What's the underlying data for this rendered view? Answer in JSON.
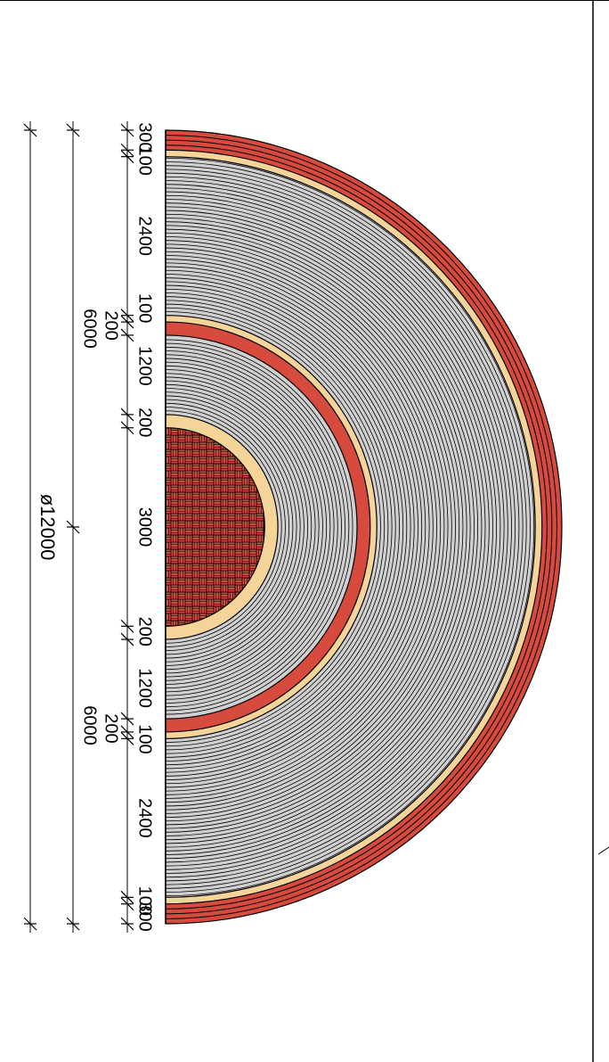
{
  "colors": {
    "brick": "#d64b3e",
    "cream": "#f5d49a",
    "gray": "#d0d0d0",
    "line": "#000000",
    "background": "#ffffff"
  },
  "layers_inner_to_outer": [
    {
      "name": "core",
      "thickness": 3000,
      "fill": "brick-pattern"
    },
    {
      "name": "cream-band-1",
      "thickness": 200,
      "fill": "cream"
    },
    {
      "name": "gray-rings-inner",
      "thickness": 1200,
      "fill": "gray-rings"
    },
    {
      "name": "brick-band-1",
      "thickness": 200,
      "fill": "brick"
    },
    {
      "name": "cream-band-2",
      "thickness": 100,
      "fill": "cream"
    },
    {
      "name": "gray-rings-outer",
      "thickness": 2400,
      "fill": "gray-rings"
    },
    {
      "name": "cream-band-3",
      "thickness": 100,
      "fill": "cream"
    },
    {
      "name": "brick-band-outer",
      "thickness": 300,
      "fill": "brick-striped"
    }
  ],
  "dimensions": {
    "top_row": [
      "300",
      "100",
      "2400",
      "100",
      "200",
      "1200",
      "200"
    ],
    "center": "3000",
    "bottom_row": [
      "200",
      "1200",
      "200",
      "100",
      "2400",
      "100",
      "300"
    ],
    "radius_top": "6000",
    "radius_bottom": "6000",
    "diameter": "ø12000"
  }
}
